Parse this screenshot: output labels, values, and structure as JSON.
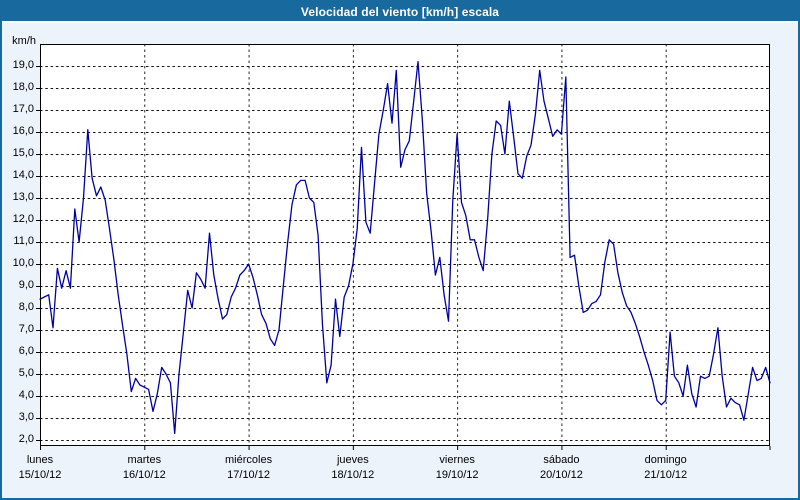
{
  "title": "Velocidad del viento [km/h] escala",
  "colors": {
    "title_bar": "#17699e",
    "frame": "#17699e",
    "page_bg": "#edf3fa",
    "plot_bg": "#ffffff",
    "grid": "#111111",
    "line": "#0000a0",
    "text": "#000000"
  },
  "y_axis": {
    "unit_label": "km/h",
    "min": 2,
    "max": 19,
    "step": 1,
    "tick_labels": [
      "19,0",
      "18,0",
      "17,0",
      "16,0",
      "15,0",
      "14,0",
      "13,0",
      "12,0",
      "11,0",
      "10,0",
      "9,0",
      "8,0",
      "7,0",
      "6,0",
      "5,0",
      "4,0",
      "3,0",
      "2,0"
    ]
  },
  "x_axis": {
    "days": [
      {
        "name": "lunes",
        "date": "15/10/12"
      },
      {
        "name": "martes",
        "date": "16/10/12"
      },
      {
        "name": "miércoles",
        "date": "17/10/12"
      },
      {
        "name": "jueves",
        "date": "18/10/12"
      },
      {
        "name": "viernes",
        "date": "19/10/12"
      },
      {
        "name": "sábado",
        "date": "20/10/12"
      },
      {
        "name": "domingo",
        "date": "21/10/12"
      }
    ]
  },
  "chart_data": {
    "type": "line",
    "title": "Velocidad del viento [km/h] escala",
    "ylabel": "km/h",
    "ylim": [
      2,
      19
    ],
    "y_tick_step": 1,
    "grid": "dashed, horizontal every 1 km/h, vertical at each day boundary",
    "legend": "none",
    "x_unit": "hourly samples, hours 0-23 of each day",
    "line_color": "#0000a0",
    "series_name": "Velocidad del viento",
    "days": [
      {
        "name": "lunes",
        "date": "15/10/12",
        "values": [
          8.4,
          8.5,
          8.6,
          7.1,
          9.8,
          8.9,
          9.7,
          8.9,
          12.5,
          11.0,
          13.0,
          16.1,
          13.9,
          13.1,
          13.5,
          12.9,
          11.6,
          10.2,
          8.6,
          7.2,
          5.9,
          4.2,
          4.8,
          4.5
        ]
      },
      {
        "name": "martes",
        "date": "16/10/12",
        "values": [
          4.4,
          4.3,
          3.3,
          4.1,
          5.3,
          5.0,
          4.6,
          2.3,
          5.0,
          6.9,
          8.8,
          8.0,
          9.6,
          9.3,
          8.9,
          11.4,
          9.5,
          8.4,
          7.5,
          7.7,
          8.5,
          8.9,
          9.5,
          9.7
        ]
      },
      {
        "name": "miércoles",
        "date": "17/10/12",
        "values": [
          10.0,
          9.4,
          8.6,
          7.7,
          7.3,
          6.6,
          6.3,
          7.0,
          9.0,
          11.0,
          12.7,
          13.6,
          13.8,
          13.8,
          13.0,
          12.8,
          11.3,
          7.3,
          4.6,
          5.4,
          8.4,
          6.7,
          8.5,
          9.0
        ]
      },
      {
        "name": "jueves",
        "date": "18/10/12",
        "values": [
          10.0,
          11.6,
          15.3,
          11.9,
          11.4,
          13.7,
          15.9,
          17.0,
          18.2,
          16.4,
          18.8,
          14.4,
          15.2,
          15.6,
          17.4,
          19.2,
          16.5,
          13.2,
          11.5,
          9.5,
          10.3,
          8.6,
          7.4,
          12.9
        ]
      },
      {
        "name": "viernes",
        "date": "19/10/12",
        "values": [
          15.9,
          12.8,
          12.2,
          11.1,
          11.1,
          10.3,
          9.7,
          12.0,
          15.0,
          16.5,
          16.3,
          15.0,
          17.4,
          15.8,
          14.1,
          13.9,
          14.9,
          15.4,
          16.8,
          18.8,
          17.4,
          16.6,
          15.8,
          16.1
        ]
      },
      {
        "name": "sábado",
        "date": "20/10/12",
        "values": [
          15.9,
          18.5,
          10.3,
          10.4,
          9.0,
          7.8,
          7.9,
          8.2,
          8.3,
          8.6,
          10.1,
          11.1,
          10.9,
          9.6,
          8.7,
          8.1,
          7.8,
          7.3,
          6.7,
          6.0,
          5.4,
          4.7,
          3.8,
          3.6
        ]
      },
      {
        "name": "domingo",
        "date": "21/10/12",
        "values": [
          3.8,
          6.9,
          4.9,
          4.6,
          4.0,
          5.4,
          4.1,
          3.5,
          4.9,
          4.8,
          4.9,
          5.9,
          7.1,
          4.9,
          3.5,
          3.9,
          3.7,
          3.6,
          2.9,
          4.1,
          5.3,
          4.7,
          4.8,
          5.3
        ]
      }
    ],
    "end_value": 4.6
  }
}
